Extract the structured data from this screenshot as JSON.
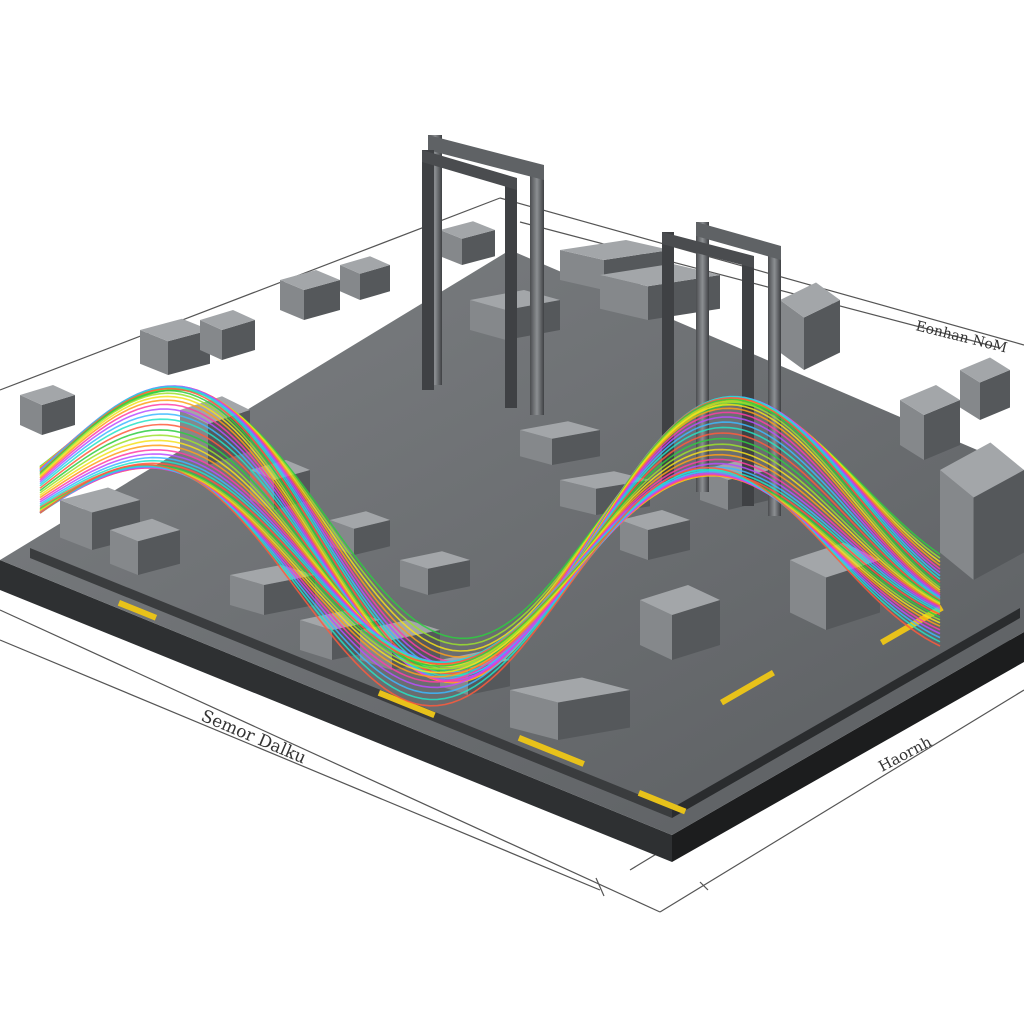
{
  "labels": {
    "axis_left": "Semor Dalku",
    "axis_right_top": "Eonhan NoM",
    "axis_right_bottom": "Haornh"
  },
  "colors": {
    "background": "#ffffff",
    "floor_top": "#6e7174",
    "floor_side": "#2e3032",
    "floor_edge": "#1c1d1e",
    "machinery": "#8a8d90",
    "machinery_dark": "#4a4c4f",
    "hazard_yellow": "#e8c21a",
    "wave_palette": [
      "#2ecc40",
      "#9be22d",
      "#f4e21c",
      "#ff9f1a",
      "#ff3da6",
      "#b84dff",
      "#3db8ff",
      "#25e3c6",
      "#ff5a3c"
    ]
  },
  "icons": {
    "gantry": "gantry-frame-icon",
    "machine": "machine-block-icon"
  }
}
